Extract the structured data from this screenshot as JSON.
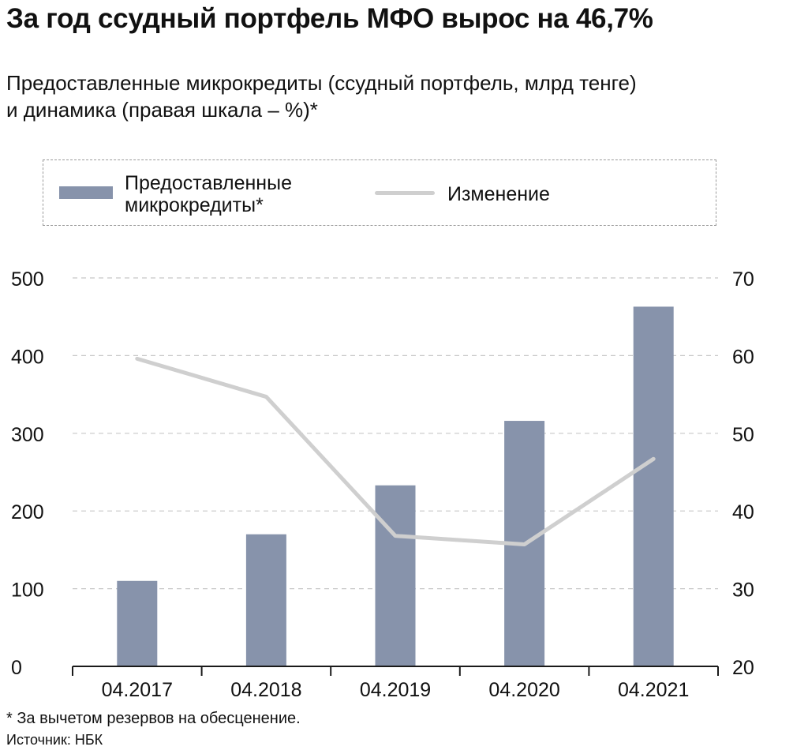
{
  "title": "За год ссудный портфель МФО вырос на 46,7%",
  "subtitle": {
    "line1": "Предоставленные микрокредиты (ссудный портфель, млрд тенге)",
    "line2": "и динамика (правая шкала – %)*"
  },
  "legend": {
    "bar_label": "Предоставленные микрокредиты*",
    "line_label": "Изменение"
  },
  "footnote": "* За вычетом резервов на обесценение.",
  "source": "Источник: НБК",
  "colors": {
    "bar": "#8793ab",
    "line": "#cfcfcf",
    "grid": "#c8c8c8",
    "axis": "#1a1a1a",
    "text": "#111111"
  },
  "chart_data": {
    "type": "bar",
    "categories": [
      "04.2017",
      "04.2018",
      "04.2019",
      "04.2020",
      "04.2021"
    ],
    "series": [
      {
        "name": "Предоставленные микрокредиты*",
        "type": "bar",
        "axis": "left",
        "values": [
          110,
          170,
          233,
          316,
          463
        ]
      },
      {
        "name": "Изменение",
        "type": "line",
        "axis": "right",
        "values": [
          59.6,
          54.7,
          36.8,
          35.7,
          46.7
        ]
      }
    ],
    "y_left": {
      "min": 0,
      "max": 500,
      "ticks": [
        0,
        100,
        200,
        300,
        400,
        500
      ]
    },
    "y_right": {
      "min": 20,
      "max": 70,
      "ticks": [
        20,
        30,
        40,
        50,
        60,
        70
      ]
    },
    "grid": true,
    "legend_position": "top"
  }
}
